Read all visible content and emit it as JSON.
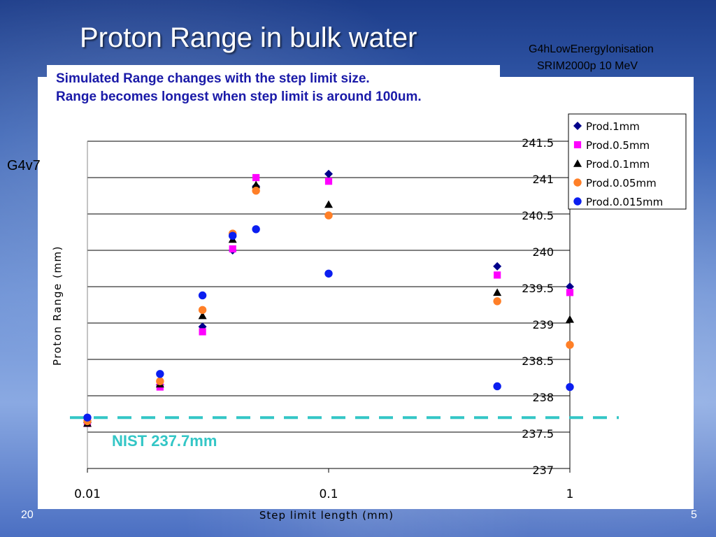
{
  "slide": {
    "title": "Proton Range in bulk water",
    "model_line1": "G4hLowEnergyIonisation",
    "model_line2": "SRIM2000p 10 MeV",
    "note_line1": "Simulated Range changes with the step limit size.",
    "note_line2": "Range becomes longest when step limit is around 100um.",
    "version_label": "G4v7",
    "nist_label": "NIST  237.7mm",
    "footer_left": "20",
    "footer_right": "5"
  },
  "chart_data": {
    "type": "scatter",
    "xlabel": "Step limit length (mm)",
    "ylabel": "Proton Range (mm)",
    "x_scale": "log",
    "xlim": [
      0.01,
      1
    ],
    "ylim": [
      237,
      241.5
    ],
    "y_ticks": [
      "241.5",
      "241",
      "240.5",
      "240",
      "239.5",
      "239",
      "238.5",
      "238",
      "237.5",
      "237"
    ],
    "x_ticks": [
      "0.01",
      "0.1",
      "1"
    ],
    "grid": "horizontal",
    "legend_position": "top-right",
    "reference_line": {
      "y": 237.7,
      "color": "#33c6c6"
    },
    "series": [
      {
        "name": "Prod.1mm",
        "marker": "diamond",
        "color": "#00008b",
        "points": [
          [
            0.01,
            237.63
          ],
          [
            0.02,
            238.15
          ],
          [
            0.03,
            238.95
          ],
          [
            0.04,
            240.0
          ],
          [
            0.05,
            240.88
          ],
          [
            0.1,
            241.05
          ],
          [
            0.5,
            239.78
          ],
          [
            1,
            239.5
          ]
        ]
      },
      {
        "name": "Prod.0.5mm",
        "marker": "square",
        "color": "#ff00ff",
        "points": [
          [
            0.01,
            237.62
          ],
          [
            0.02,
            238.12
          ],
          [
            0.03,
            238.88
          ],
          [
            0.04,
            240.02
          ],
          [
            0.05,
            241.0
          ],
          [
            0.1,
            240.95
          ],
          [
            0.5,
            239.66
          ],
          [
            1,
            239.42
          ]
        ]
      },
      {
        "name": "Prod.0.1mm",
        "marker": "triangle",
        "color": "#000000",
        "points": [
          [
            0.01,
            237.62
          ],
          [
            0.02,
            238.16
          ],
          [
            0.03,
            239.1
          ],
          [
            0.04,
            240.15
          ],
          [
            0.05,
            240.9
          ],
          [
            0.1,
            240.63
          ],
          [
            0.5,
            239.42
          ],
          [
            1,
            239.05
          ]
        ]
      },
      {
        "name": "Prod.0.05mm",
        "marker": "circle",
        "color": "#ff7f27",
        "points": [
          [
            0.01,
            237.65
          ],
          [
            0.02,
            238.2
          ],
          [
            0.03,
            239.18
          ],
          [
            0.04,
            240.23
          ],
          [
            0.05,
            240.82
          ],
          [
            0.1,
            240.48
          ],
          [
            0.5,
            239.3
          ],
          [
            1,
            238.7
          ]
        ]
      },
      {
        "name": "Prod.0.015mm",
        "marker": "circle",
        "color": "#0b1ef0",
        "points": [
          [
            0.01,
            237.7
          ],
          [
            0.02,
            238.3
          ],
          [
            0.03,
            239.38
          ],
          [
            0.04,
            240.2
          ],
          [
            0.05,
            240.29
          ],
          [
            0.1,
            239.68
          ],
          [
            0.5,
            238.13
          ],
          [
            1,
            238.12
          ]
        ]
      }
    ]
  }
}
